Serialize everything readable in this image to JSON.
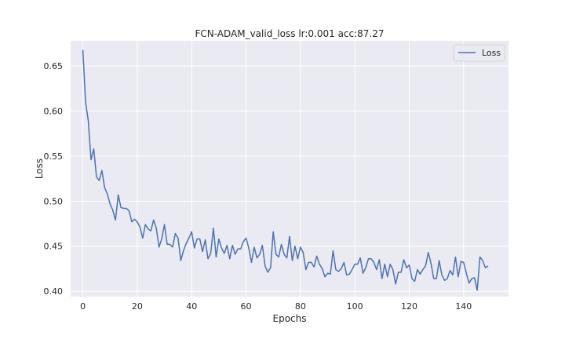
{
  "chart_data": {
    "type": "line",
    "title": "FCN-ADAM_valid_loss lr:0.001 acc:87.27",
    "xlabel": "Epochs",
    "ylabel": "Loss",
    "xlim": [
      -4.5,
      156.5
    ],
    "ylim": [
      0.394,
      0.678
    ],
    "xticks": [
      0,
      20,
      40,
      60,
      80,
      100,
      120,
      140
    ],
    "yticks": [
      0.4,
      0.45,
      0.5,
      0.55,
      0.6,
      0.65
    ],
    "grid": true,
    "legend_position": "top-right",
    "colors": {
      "background": "#eaeaf2",
      "grid": "#ffffff",
      "line": "#4c72b0"
    },
    "series": [
      {
        "name": "Loss",
        "x": [
          0,
          1,
          2,
          3,
          4,
          5,
          6,
          7,
          8,
          9,
          10,
          11,
          12,
          13,
          14,
          15,
          16,
          17,
          18,
          19,
          20,
          21,
          22,
          23,
          24,
          25,
          26,
          27,
          28,
          29,
          30,
          31,
          32,
          33,
          34,
          35,
          36,
          37,
          38,
          39,
          40,
          41,
          42,
          43,
          44,
          45,
          46,
          47,
          48,
          49,
          50,
          51,
          52,
          53,
          54,
          55,
          56,
          57,
          58,
          59,
          60,
          61,
          62,
          63,
          64,
          65,
          66,
          67,
          68,
          69,
          70,
          71,
          72,
          73,
          74,
          75,
          76,
          77,
          78,
          79,
          80,
          81,
          82,
          83,
          84,
          85,
          86,
          87,
          88,
          89,
          90,
          91,
          92,
          93,
          94,
          95,
          96,
          97,
          98,
          99,
          100,
          101,
          102,
          103,
          104,
          105,
          106,
          107,
          108,
          109,
          110,
          111,
          112,
          113,
          114,
          115,
          116,
          117,
          118,
          119,
          120,
          121,
          122,
          123,
          124,
          125,
          126,
          127,
          128,
          129,
          130,
          131,
          132,
          133,
          134,
          135,
          136,
          137,
          138,
          139,
          140,
          141,
          142,
          143,
          144,
          145,
          146,
          147,
          148,
          149
        ],
        "values": [
          0.668,
          0.61,
          0.589,
          0.546,
          0.558,
          0.527,
          0.523,
          0.534,
          0.515,
          0.508,
          0.497,
          0.49,
          0.479,
          0.507,
          0.493,
          0.492,
          0.492,
          0.489,
          0.477,
          0.48,
          0.477,
          0.471,
          0.459,
          0.474,
          0.469,
          0.467,
          0.479,
          0.47,
          0.449,
          0.458,
          0.474,
          0.452,
          0.452,
          0.449,
          0.464,
          0.459,
          0.434,
          0.445,
          0.453,
          0.459,
          0.466,
          0.448,
          0.458,
          0.458,
          0.444,
          0.457,
          0.436,
          0.442,
          0.47,
          0.438,
          0.458,
          0.448,
          0.442,
          0.451,
          0.436,
          0.451,
          0.441,
          0.447,
          0.447,
          0.455,
          0.459,
          0.448,
          0.432,
          0.449,
          0.437,
          0.441,
          0.451,
          0.428,
          0.421,
          0.426,
          0.466,
          0.441,
          0.438,
          0.452,
          0.441,
          0.437,
          0.461,
          0.434,
          0.45,
          0.436,
          0.449,
          0.443,
          0.424,
          0.432,
          0.432,
          0.427,
          0.439,
          0.43,
          0.425,
          0.416,
          0.42,
          0.419,
          0.445,
          0.424,
          0.422,
          0.425,
          0.432,
          0.418,
          0.419,
          0.424,
          0.43,
          0.43,
          0.437,
          0.42,
          0.426,
          0.436,
          0.436,
          0.432,
          0.424,
          0.435,
          0.414,
          0.43,
          0.416,
          0.43,
          0.424,
          0.408,
          0.421,
          0.421,
          0.435,
          0.426,
          0.429,
          0.414,
          0.411,
          0.424,
          0.419,
          0.424,
          0.428,
          0.443,
          0.431,
          0.414,
          0.414,
          0.434,
          0.418,
          0.412,
          0.414,
          0.423,
          0.418,
          0.438,
          0.416,
          0.433,
          0.432,
          0.42,
          0.409,
          0.414,
          0.415,
          0.401,
          0.438,
          0.434,
          0.426,
          0.428
        ]
      }
    ]
  }
}
